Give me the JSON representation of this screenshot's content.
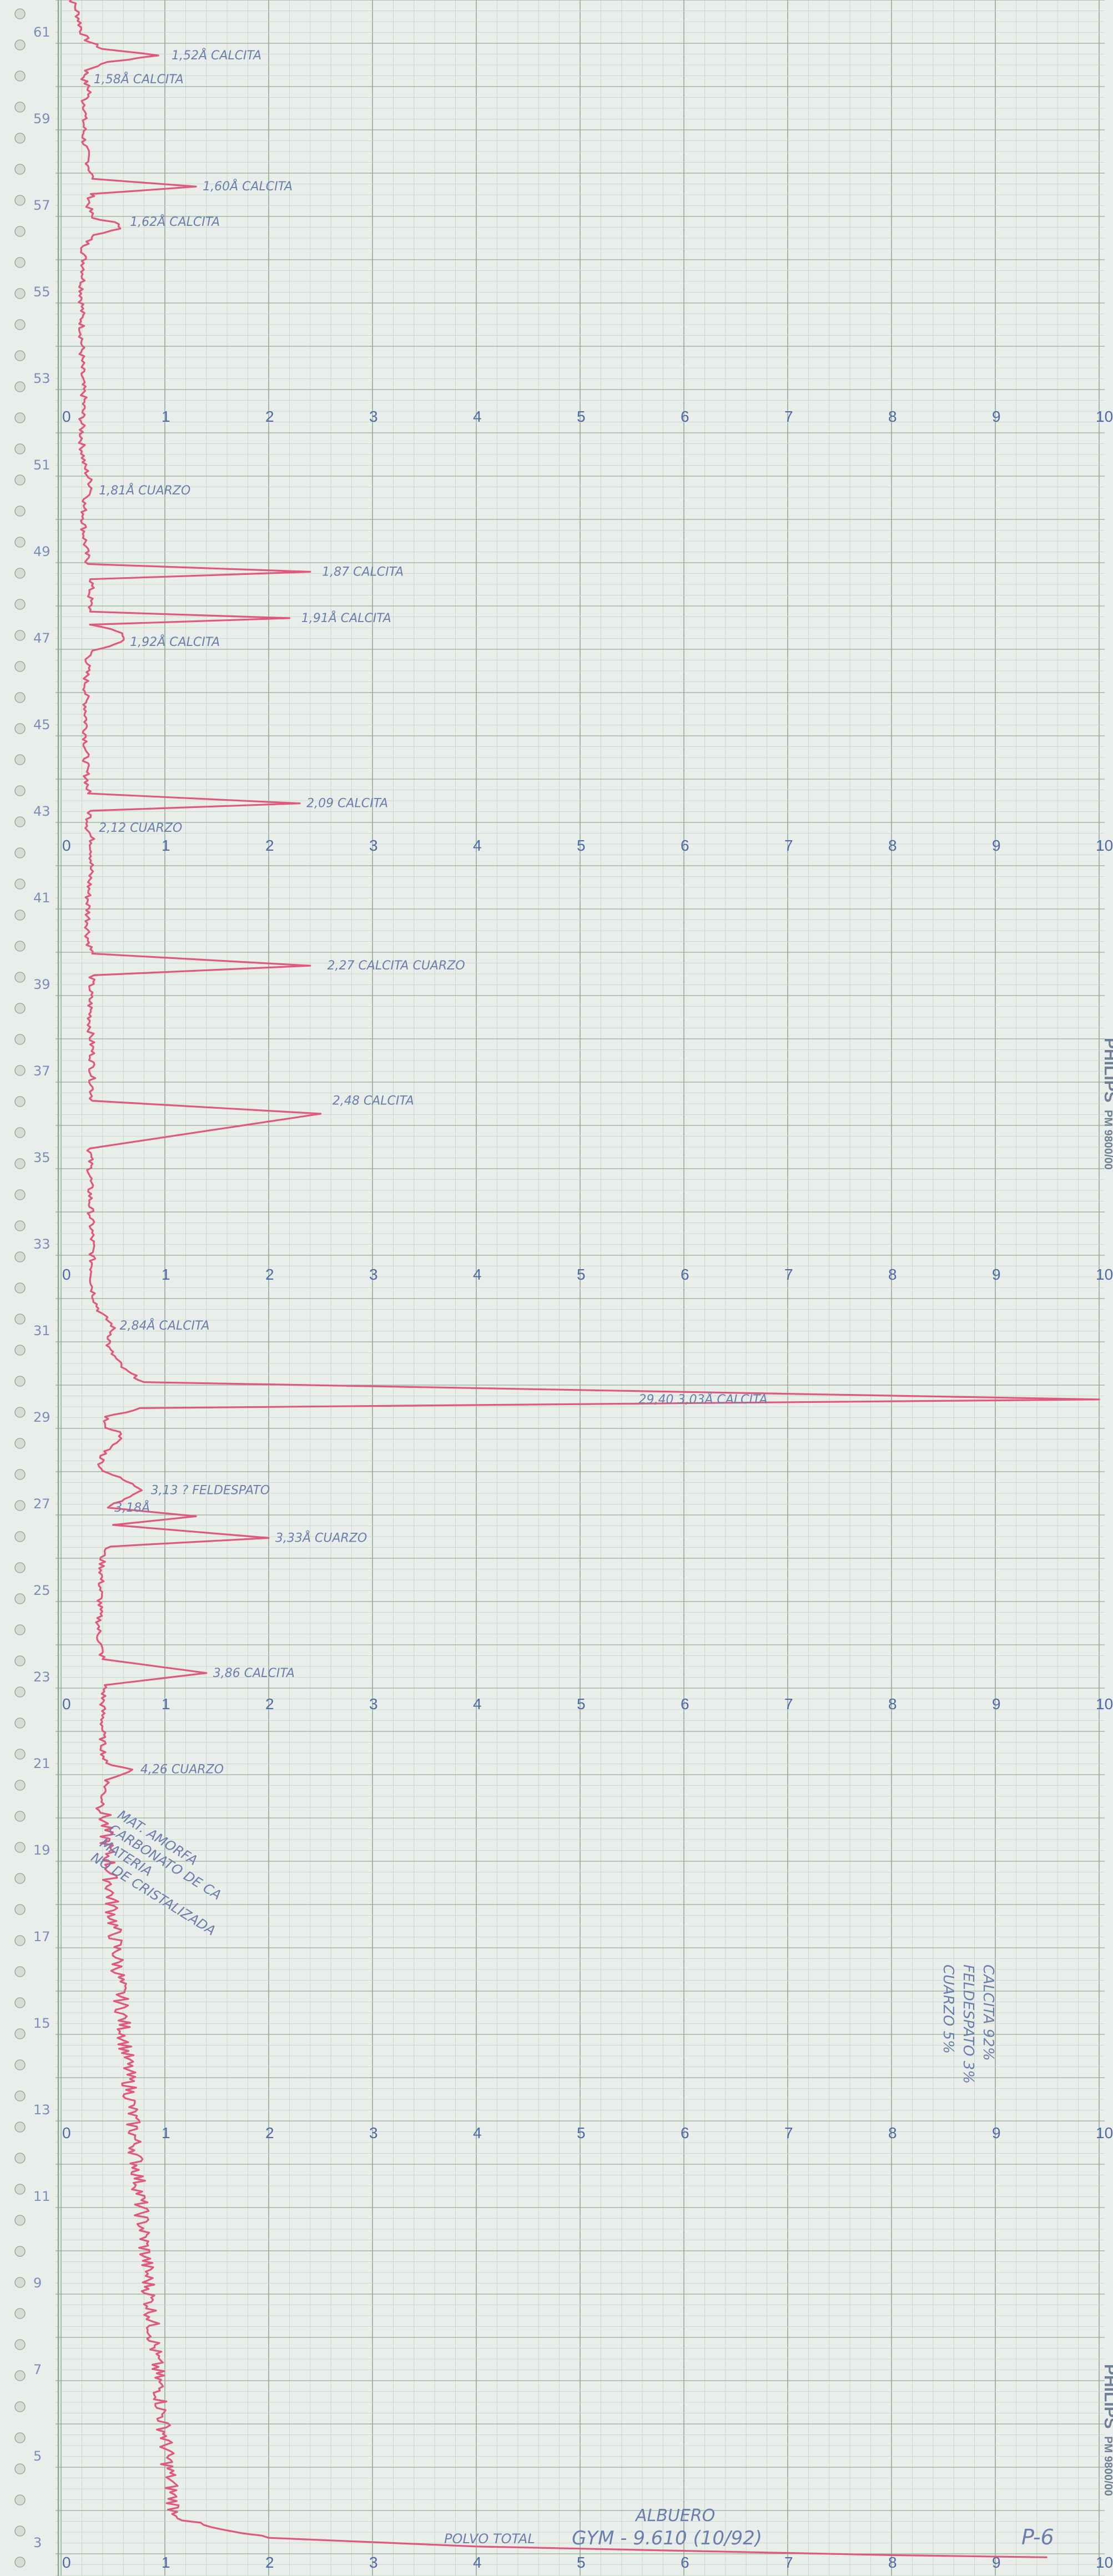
{
  "chart_data": {
    "type": "line",
    "title": "",
    "xlabel": "",
    "ylabel": "",
    "intensity_scale": [
      0,
      1,
      2,
      3,
      4,
      5,
      6,
      7,
      8,
      9,
      10
    ],
    "two_theta_ticks": [
      "61",
      "59",
      "57",
      "55",
      "53",
      "51",
      "49",
      "47",
      "45",
      "43",
      "41",
      "39",
      "37",
      "35",
      "33",
      "31",
      "29",
      "27",
      "25",
      "23",
      "21",
      "19",
      "17",
      "15",
      "13",
      "11",
      "9",
      "7",
      "5",
      "3"
    ],
    "series": [
      {
        "two_theta": [
          62.0,
          61.5,
          61.0,
          60.8,
          60.6,
          60.45,
          60.3,
          60.1,
          59.9,
          59.6,
          59.4,
          59.2,
          59.0,
          58.5,
          58.0,
          57.6,
          57.42,
          57.25,
          57.0,
          56.7,
          56.6,
          56.45,
          56.3,
          56.0,
          55.5,
          55.0,
          54.5,
          54.0,
          53.5,
          53.0,
          52.5,
          52.0,
          51.5,
          51.0,
          50.6,
          50.4,
          50.1,
          49.8,
          49.5,
          49.0,
          48.7,
          48.52,
          48.35,
          48.0,
          47.6,
          47.45,
          47.3,
          47.1,
          46.9,
          46.7,
          46.5,
          46.0,
          45.0,
          44.0,
          43.4,
          43.17,
          43.0,
          42.6,
          42.3,
          42.0,
          41.0,
          40.0,
          39.7,
          39.42,
          39.2,
          38.8,
          38.0,
          37.5,
          36.3,
          36.0,
          35.2,
          34.6,
          34.0,
          33.0,
          32.0,
          31.6,
          31.4,
          31.1,
          30.6,
          30.1,
          29.8,
          29.4,
          29.2,
          29.0,
          28.8,
          28.6,
          28.1,
          27.8,
          27.3,
          26.9,
          26.7,
          26.5,
          26.2,
          26.0,
          25.8,
          25.0,
          24.0,
          23.4,
          23.08,
          22.8,
          22.4,
          22.0,
          21.5,
          21.0,
          20.85,
          20.6,
          20.2,
          19.6,
          19.0,
          18.5,
          18.0,
          17.5,
          17.0,
          16.5,
          16.0,
          15.5,
          15.0,
          14.5,
          14.0,
          13.5,
          13.0,
          12.5,
          12.0,
          11.5,
          11.0,
          10.5,
          10.0,
          9.5,
          9.0,
          8.5,
          8.0,
          7.5,
          7.0,
          6.5,
          6.0,
          5.5,
          5.0,
          4.5,
          4.0,
          3.7,
          3.5,
          3.3,
          3.1,
          3.0,
          2.9,
          2.8,
          2.7,
          2.65
        ],
        "intensity": [
          0.05,
          0.15,
          0.2,
          0.25,
          0.4,
          0.95,
          0.45,
          0.25,
          0.22,
          0.28,
          0.22,
          0.24,
          0.22,
          0.22,
          0.26,
          0.3,
          1.3,
          0.3,
          0.26,
          0.3,
          0.5,
          0.6,
          0.3,
          0.22,
          0.22,
          0.2,
          0.2,
          0.2,
          0.2,
          0.2,
          0.22,
          0.2,
          0.2,
          0.22,
          0.28,
          0.3,
          0.22,
          0.22,
          0.22,
          0.24,
          0.26,
          2.4,
          0.3,
          0.28,
          0.28,
          2.2,
          0.3,
          0.6,
          0.6,
          0.3,
          0.26,
          0.24,
          0.24,
          0.24,
          0.26,
          2.3,
          0.28,
          0.26,
          0.3,
          0.3,
          0.26,
          0.26,
          0.3,
          2.4,
          0.3,
          0.28,
          0.28,
          0.3,
          0.3,
          2.5,
          0.28,
          0.28,
          0.28,
          0.3,
          0.3,
          0.34,
          0.38,
          0.5,
          0.45,
          0.6,
          0.8,
          10.0,
          0.75,
          0.45,
          0.4,
          0.6,
          0.4,
          0.38,
          0.8,
          0.45,
          1.3,
          0.5,
          2.0,
          0.45,
          0.4,
          0.38,
          0.36,
          0.4,
          1.4,
          0.42,
          0.4,
          0.4,
          0.4,
          0.42,
          0.7,
          0.45,
          0.4,
          0.42,
          0.45,
          0.47,
          0.48,
          0.5,
          0.52,
          0.54,
          0.56,
          0.58,
          0.6,
          0.62,
          0.64,
          0.66,
          0.68,
          0.7,
          0.72,
          0.74,
          0.76,
          0.78,
          0.8,
          0.82,
          0.84,
          0.86,
          0.88,
          0.9,
          0.92,
          0.95,
          0.97,
          1.0,
          1.02,
          1.05,
          1.08,
          1.1,
          1.2,
          1.5,
          2.0,
          3.0,
          4.0,
          6.0,
          8.0,
          9.5
        ]
      }
    ],
    "annotations": [
      {
        "text": "1,52Å CALCITA",
        "two_theta": 60.45,
        "intensity": 1.0
      },
      {
        "text": "1,58Å CALCITA",
        "two_theta": 59.9,
        "intensity": 0.25
      },
      {
        "text": "1,60Å CALCITA",
        "two_theta": 57.42,
        "intensity": 1.3
      },
      {
        "text": "1,62Å CALCITA",
        "two_theta": 56.6,
        "intensity": 0.6
      },
      {
        "text": "1,81Å CUARZO",
        "two_theta": 50.4,
        "intensity": 0.3
      },
      {
        "text": "1,87 CALCITA",
        "two_theta": 48.52,
        "intensity": 2.45
      },
      {
        "text": "1,91Å CALCITA",
        "two_theta": 47.45,
        "intensity": 2.25
      },
      {
        "text": "1,92Å CALCITA",
        "two_theta": 46.9,
        "intensity": 0.6
      },
      {
        "text": "2,09 CALCITA",
        "two_theta": 43.17,
        "intensity": 2.3
      },
      {
        "text": "2,12 CUARZO",
        "two_theta": 42.6,
        "intensity": 0.3
      },
      {
        "text": "2,27 CALCITA CUARZO",
        "two_theta": 39.42,
        "intensity": 2.5
      },
      {
        "text": "2,48 CALCITA",
        "two_theta": 36.3,
        "intensity": 2.55
      },
      {
        "text": "2,84Å CALCITA",
        "two_theta": 31.1,
        "intensity": 0.5
      },
      {
        "text": "29,40 3,03Å CALCITA",
        "two_theta": 29.4,
        "intensity": 5.5
      },
      {
        "text": "3,13 ? FELDESPATO",
        "two_theta": 27.3,
        "intensity": 0.8
      },
      {
        "text": "3,18Å",
        "two_theta": 26.9,
        "intensity": 0.45
      },
      {
        "text": "3,33Å CUARZO",
        "two_theta": 26.2,
        "intensity": 2.0
      },
      {
        "text": "3,86 CALCITA",
        "two_theta": 23.08,
        "intensity": 1.4
      },
      {
        "text": "4,26 CUARZO",
        "two_theta": 20.85,
        "intensity": 0.7
      }
    ],
    "grid": true,
    "legend": "none"
  },
  "notes": {
    "amorphous": [
      "MAT. AMORFA",
      "CARBONATO DE CA",
      "MATERIA",
      "NO DE CRISTALIZADA"
    ],
    "composition": [
      "CUARZO 5%",
      "FELDESPATO 3%",
      "CALCITA 92%"
    ]
  },
  "footer": {
    "site": "ALBUERO",
    "sample": "POLVO TOTAL",
    "ref": "GYM - 9.610 (10/92)",
    "code": "P-6"
  },
  "branding": {
    "maker": "PHILIPS",
    "model": "PM 9800/00"
  },
  "colors": {
    "paper": "#e9eeea",
    "grid_minor": "#c3d2c7",
    "grid_major": "#93ab9b",
    "trace": "#e0587e",
    "ink": "#6a7fae"
  }
}
